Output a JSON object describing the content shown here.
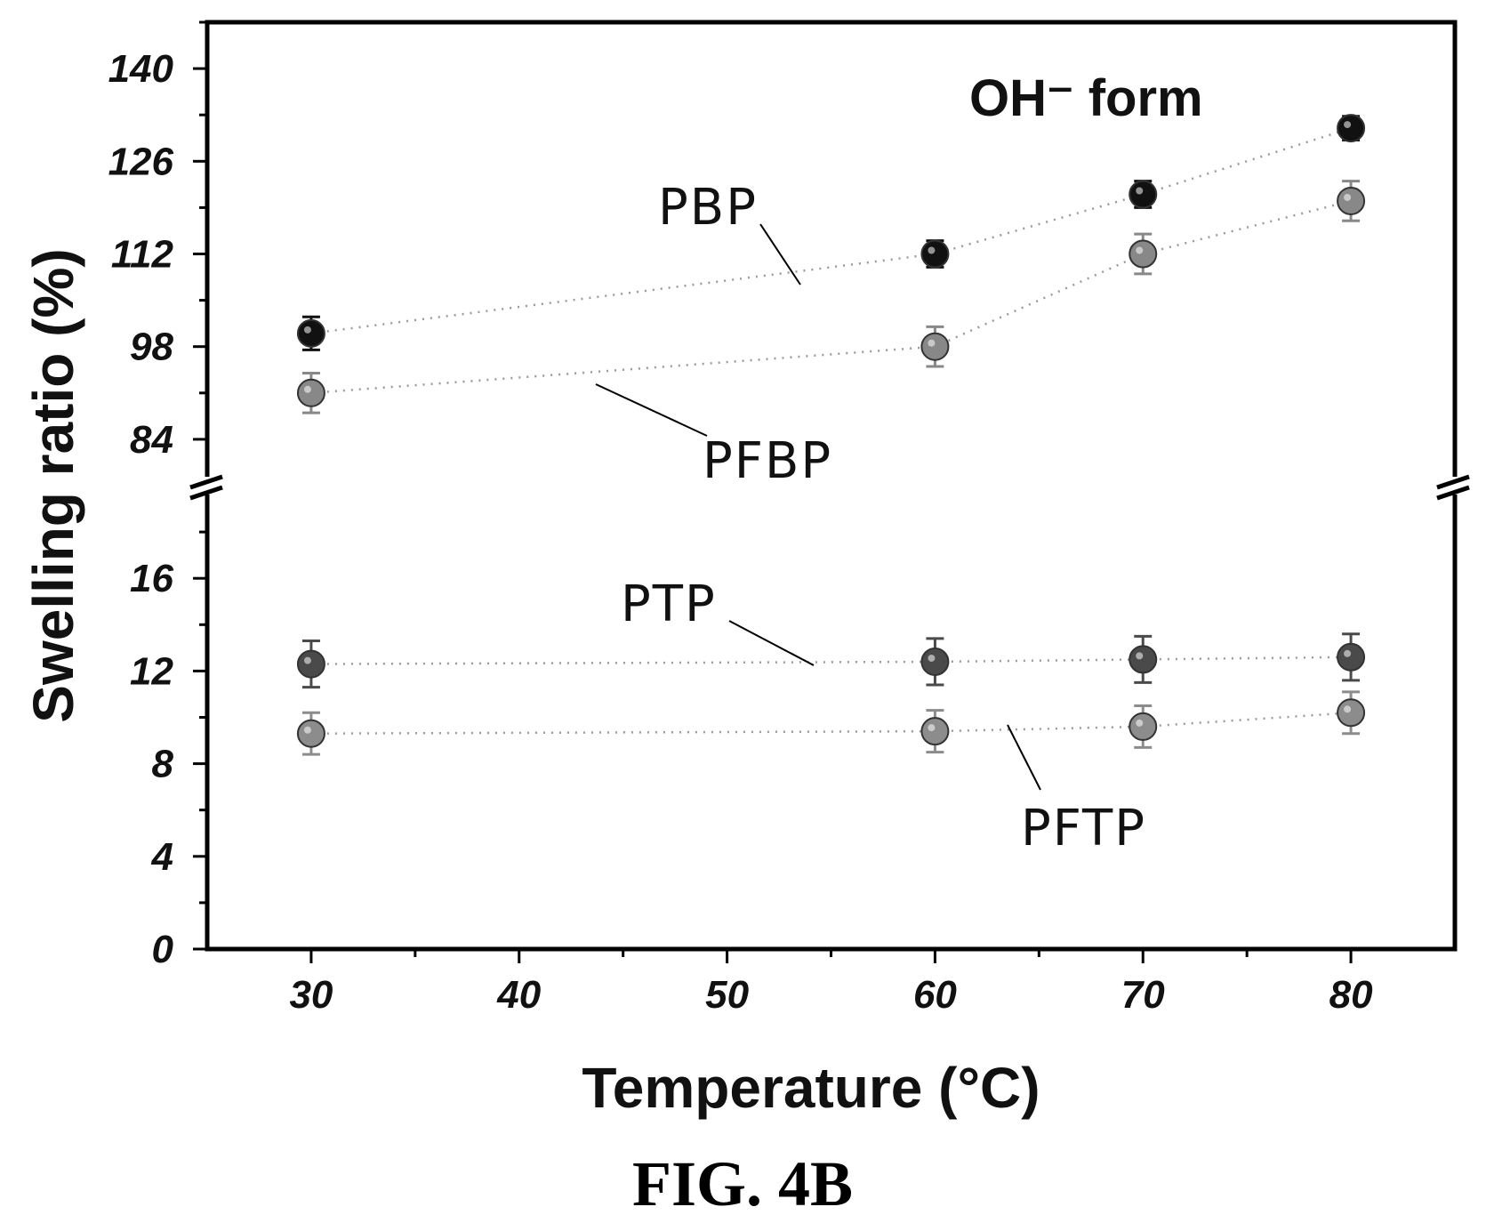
{
  "chart_data": {
    "type": "scatter",
    "annotation": "OH⁻ form",
    "xlabel": "Temperature (°C)",
    "ylabel": "Swelling ratio (%)",
    "caption": "FIG. 4B",
    "xlim": [
      25,
      85
    ],
    "x_ticks": [
      "30",
      "40",
      "50",
      "60",
      "70",
      "80"
    ],
    "y_break": true,
    "y_upper": {
      "range": [
        77,
        147
      ],
      "ticks": [
        "84",
        "98",
        "112",
        "126",
        "140"
      ]
    },
    "y_lower": {
      "range": [
        0,
        20
      ],
      "ticks": [
        "0",
        "4",
        "8",
        "12",
        "16"
      ]
    },
    "series": [
      {
        "name": "PBP",
        "panel": "upper",
        "color": "#111111",
        "x": [
          30,
          60,
          70,
          80
        ],
        "y": [
          100,
          112,
          121,
          131
        ],
        "err": [
          2.5,
          2,
          2,
          1.8
        ]
      },
      {
        "name": "PFBP",
        "panel": "upper",
        "color": "#888888",
        "x": [
          30,
          60,
          70,
          80
        ],
        "y": [
          91,
          98,
          112,
          120
        ],
        "err": [
          3,
          3,
          3,
          3
        ]
      },
      {
        "name": "PTP",
        "panel": "lower",
        "color": "#4a4a4a",
        "x": [
          30,
          60,
          70,
          80
        ],
        "y": [
          12.3,
          12.4,
          12.5,
          12.6
        ],
        "err": [
          1,
          1,
          1,
          1
        ]
      },
      {
        "name": "PFTP",
        "panel": "lower",
        "color": "#8c8c8c",
        "x": [
          30,
          60,
          70,
          80
        ],
        "y": [
          9.3,
          9.4,
          9.6,
          10.2
        ],
        "err": [
          0.9,
          0.9,
          0.9,
          0.9
        ]
      }
    ]
  }
}
